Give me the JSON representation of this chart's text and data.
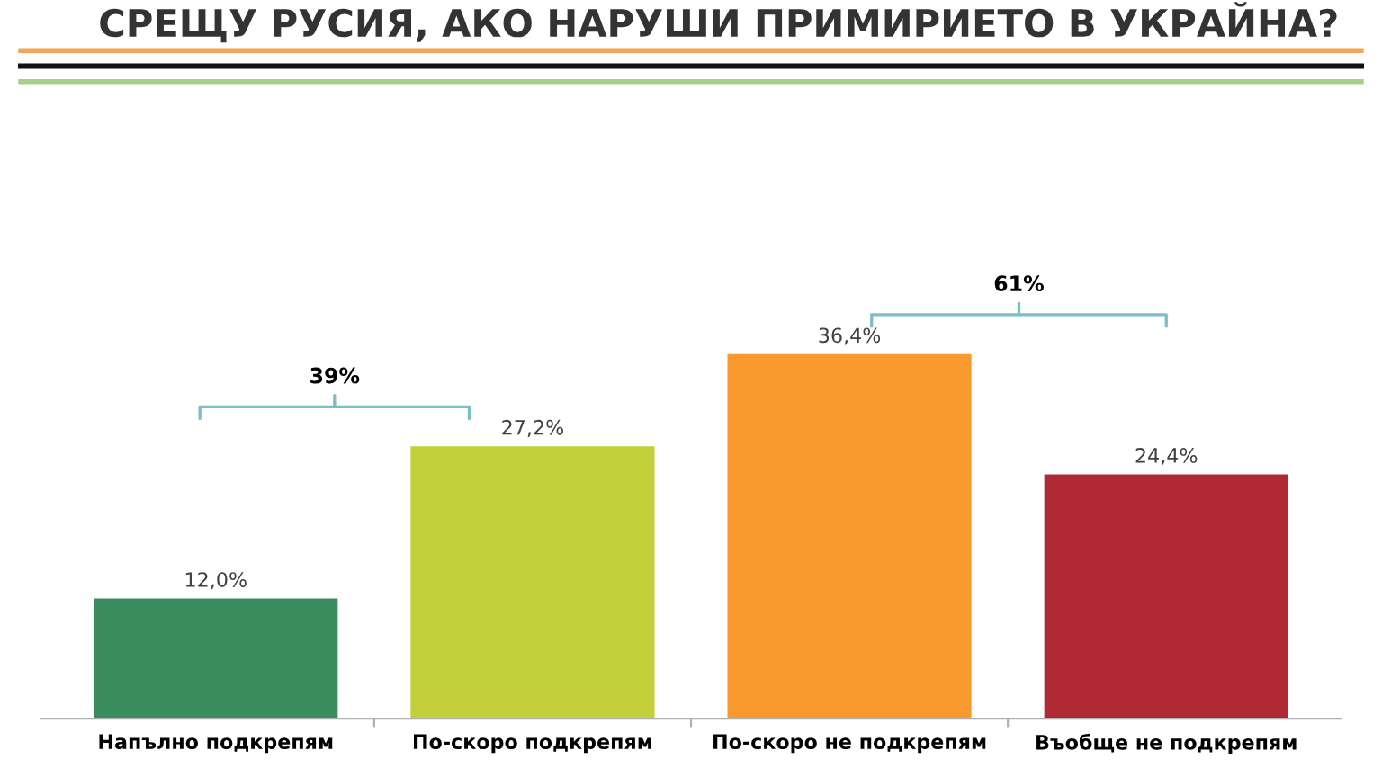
{
  "chart_data": {
    "type": "bar",
    "title": "СРЕЩУ РУСИЯ, АКО НАРУШИ ПРИМИРИЕТО В УКРАЙНА?",
    "categories": [
      "Напълно подкрепям",
      "По-скоро подкрепям",
      "По-скоро не подкрепям",
      "Въобще не подкрепям"
    ],
    "values": [
      12.0,
      27.2,
      36.4,
      24.4
    ],
    "value_labels": [
      "12,0%",
      "27,2%",
      "36,4%",
      "24,4%"
    ],
    "colors": [
      "#3a8c5c",
      "#c2cf3b",
      "#f99a2e",
      "#b02a35"
    ],
    "annotations": [
      "39%",
      "61%"
    ],
    "grid": false,
    "legend": false
  }
}
